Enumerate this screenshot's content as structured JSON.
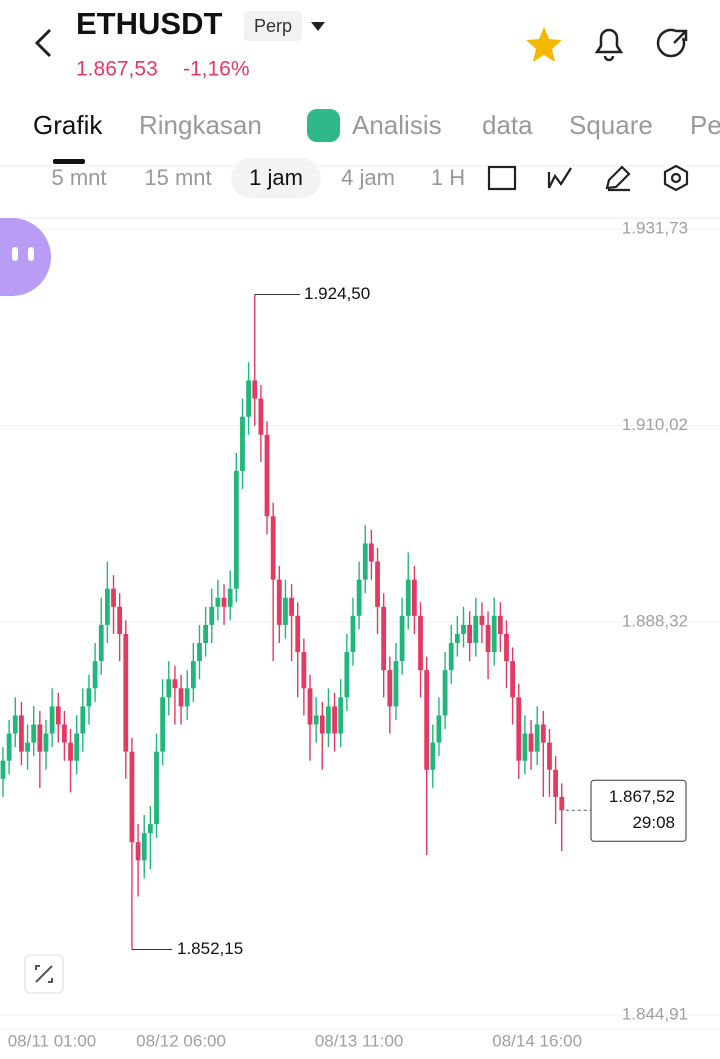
{
  "header": {
    "symbol": "ETHUSDT",
    "badge": "Perp",
    "price": "1.867,53",
    "change": "-1,16%"
  },
  "tabs": [
    "Grafik",
    "Ringkasan",
    "Analisis",
    "data",
    "Square",
    "Pe"
  ],
  "timeframes": [
    "5 mnt",
    "15 mnt",
    "1 jam",
    "4 jam",
    "1 H"
  ],
  "chart_data": {
    "type": "candlestick",
    "up_color": "#21b77a",
    "down_color": "#e33a62",
    "ylim": [
      1844.91,
      1931.73
    ],
    "yticks": [
      {
        "value": 1931.73,
        "label": "1.931,73"
      },
      {
        "value": 1910.02,
        "label": "1.910,02"
      },
      {
        "value": 1888.32,
        "label": "1.888,32"
      },
      {
        "value": 1844.91,
        "label": "1.844,91"
      }
    ],
    "xticks": [
      {
        "value": 0,
        "label": "08/11 01:00"
      },
      {
        "value": 29,
        "label": "08/12 06:00"
      },
      {
        "value": 58,
        "label": "08/13 11:00"
      },
      {
        "value": 87,
        "label": "08/14 16:00"
      }
    ],
    "high_label": "1.924,50",
    "low_label": "1.852,15",
    "last_price": 1867.52,
    "last_price_label": "1.867,52",
    "countdown": "29:08",
    "candles": [
      [
        1871,
        1874.5,
        1869,
        1873
      ],
      [
        1873,
        1877.5,
        1871.5,
        1876
      ],
      [
        1876,
        1880,
        1874.5,
        1878
      ],
      [
        1878,
        1879.5,
        1872.5,
        1874
      ],
      [
        1874,
        1877,
        1872,
        1875
      ],
      [
        1875,
        1879,
        1873.5,
        1877
      ],
      [
        1877,
        1878.5,
        1870,
        1874
      ],
      [
        1874,
        1877.5,
        1872,
        1876
      ],
      [
        1876,
        1881,
        1874.5,
        1879
      ],
      [
        1879,
        1880.5,
        1875,
        1877
      ],
      [
        1877,
        1878.5,
        1873,
        1875
      ],
      [
        1875,
        1876.5,
        1869.5,
        1873
      ],
      [
        1873,
        1878,
        1871.5,
        1876
      ],
      [
        1876,
        1881,
        1874,
        1879
      ],
      [
        1879,
        1882.5,
        1877,
        1881
      ],
      [
        1881,
        1886,
        1879.5,
        1884
      ],
      [
        1884,
        1891,
        1882.5,
        1888
      ],
      [
        1888,
        1895,
        1886,
        1892
      ],
      [
        1892,
        1893.5,
        1887,
        1890
      ],
      [
        1890,
        1891.5,
        1884,
        1887
      ],
      [
        1887,
        1888.5,
        1871,
        1874
      ],
      [
        1874,
        1875.5,
        1852.15,
        1864
      ],
      [
        1864,
        1866,
        1858,
        1862
      ],
      [
        1862,
        1867,
        1860,
        1865
      ],
      [
        1865,
        1868,
        1861,
        1866
      ],
      [
        1866,
        1876,
        1864.5,
        1874
      ],
      [
        1874,
        1882,
        1872.5,
        1880
      ],
      [
        1880,
        1884,
        1878,
        1882
      ],
      [
        1882,
        1883.5,
        1877,
        1881
      ],
      [
        1881,
        1882.5,
        1877,
        1879
      ],
      [
        1879,
        1883,
        1877.5,
        1881
      ],
      [
        1881,
        1886,
        1879.5,
        1884
      ],
      [
        1884,
        1888,
        1882,
        1886
      ],
      [
        1886,
        1890,
        1884.5,
        1888
      ],
      [
        1888,
        1892,
        1886,
        1890
      ],
      [
        1890,
        1893,
        1888.5,
        1891
      ],
      [
        1891,
        1892.5,
        1888,
        1890
      ],
      [
        1890,
        1894,
        1888.5,
        1892
      ],
      [
        1892,
        1907,
        1890.5,
        1905
      ],
      [
        1905,
        1913,
        1903,
        1911
      ],
      [
        1911,
        1917,
        1909,
        1915
      ],
      [
        1915,
        1924.5,
        1910,
        1913
      ],
      [
        1913,
        1914.5,
        1906,
        1909
      ],
      [
        1909,
        1910.5,
        1898,
        1900
      ],
      [
        1900,
        1901.5,
        1884,
        1893
      ],
      [
        1893,
        1894.5,
        1886,
        1888
      ],
      [
        1888,
        1893,
        1886.5,
        1891
      ],
      [
        1891,
        1892.5,
        1884,
        1889
      ],
      [
        1889,
        1890.5,
        1880,
        1885
      ],
      [
        1885,
        1886.5,
        1878,
        1881
      ],
      [
        1881,
        1882.5,
        1873,
        1877
      ],
      [
        1877,
        1880,
        1875,
        1878
      ],
      [
        1878,
        1879.5,
        1872,
        1876
      ],
      [
        1876,
        1881,
        1874.5,
        1879
      ],
      [
        1879,
        1880.5,
        1874,
        1876
      ],
      [
        1876,
        1882,
        1874.5,
        1880
      ],
      [
        1880,
        1887,
        1878.5,
        1885
      ],
      [
        1885,
        1891,
        1883.5,
        1889
      ],
      [
        1889,
        1895,
        1887.5,
        1893
      ],
      [
        1893,
        1899,
        1891.5,
        1897
      ],
      [
        1897,
        1898.5,
        1893,
        1895
      ],
      [
        1895,
        1896.5,
        1887,
        1890
      ],
      [
        1890,
        1891.5,
        1880,
        1883
      ],
      [
        1883,
        1884.5,
        1876,
        1879
      ],
      [
        1879,
        1886,
        1877.5,
        1884
      ],
      [
        1884,
        1891,
        1882.5,
        1889
      ],
      [
        1889,
        1896,
        1887.5,
        1893
      ],
      [
        1893,
        1894.5,
        1887,
        1889
      ],
      [
        1889,
        1890.5,
        1880,
        1883
      ],
      [
        1883,
        1884.5,
        1862.6,
        1872
      ],
      [
        1872,
        1877,
        1870,
        1875
      ],
      [
        1875,
        1880,
        1873.5,
        1878
      ],
      [
        1878,
        1885,
        1876.5,
        1883
      ],
      [
        1883,
        1888,
        1881.5,
        1886
      ],
      [
        1886,
        1889,
        1884.5,
        1887
      ],
      [
        1887,
        1890,
        1885.5,
        1888
      ],
      [
        1888,
        1889.5,
        1884,
        1886
      ],
      [
        1886,
        1891,
        1884.5,
        1889
      ],
      [
        1889,
        1890.5,
        1886,
        1888
      ],
      [
        1888,
        1889.5,
        1882,
        1885
      ],
      [
        1885,
        1891,
        1883.5,
        1889
      ],
      [
        1889,
        1890.5,
        1885,
        1887
      ],
      [
        1887,
        1888.5,
        1881,
        1884
      ],
      [
        1884,
        1885.5,
        1877,
        1880
      ],
      [
        1880,
        1881.5,
        1871,
        1873
      ],
      [
        1873,
        1878,
        1871.5,
        1876
      ],
      [
        1876,
        1877.5,
        1872,
        1874
      ],
      [
        1874,
        1879,
        1872.5,
        1877
      ],
      [
        1877,
        1878.5,
        1869,
        1875
      ],
      [
        1875,
        1876.5,
        1869,
        1872
      ],
      [
        1872,
        1873.5,
        1866,
        1869
      ],
      [
        1869,
        1870.5,
        1863,
        1867.52
      ]
    ]
  }
}
